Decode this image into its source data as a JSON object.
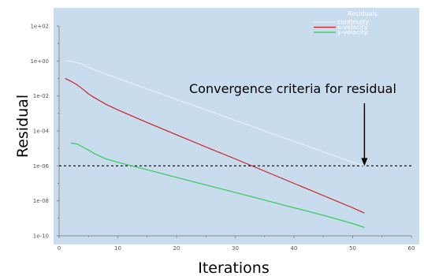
{
  "colors": {
    "plot_background": "#c8dcee",
    "frame_background": "#ffffff",
    "axis_color": "#8a8a8a",
    "threshold_line": "#000000"
  },
  "chart_data": {
    "type": "line",
    "xlabel": "Iterations",
    "ylabel": "Residual",
    "xlim": [
      0,
      60
    ],
    "ylim": [
      1e-10,
      100
    ],
    "y_scale": "log",
    "grid": false,
    "legend_title": "Residuals",
    "legend_position": "top-right",
    "x_ticks": [
      0,
      10,
      20,
      30,
      40,
      50,
      60
    ],
    "x_tick_labels": [
      "0",
      "10",
      "20",
      "30",
      "40",
      "50",
      "60"
    ],
    "y_ticks": [
      1e-10,
      1e-08,
      1e-06,
      0.0001,
      0.01,
      1,
      100
    ],
    "y_tick_labels": [
      "1e-10",
      "1e-08",
      "1e-06",
      "1e-04",
      "1e-02",
      "1e+00",
      "1e+02"
    ],
    "series": [
      {
        "name": "continuity",
        "color": "#e8eef8",
        "x": [
          1,
          2,
          3,
          4,
          5,
          10,
          15,
          20,
          25,
          30,
          35,
          40,
          45,
          50,
          52
        ],
        "y": [
          1.0,
          1.0,
          0.8,
          0.65,
          0.42,
          0.1,
          0.025,
          0.0063,
          0.0016,
          0.0004,
          0.0001,
          2.5e-05,
          6.3e-06,
          1.6e-06,
          1e-06
        ]
      },
      {
        "name": "x-velocity",
        "color": "#cc2222",
        "x": [
          1,
          2,
          3,
          4,
          5,
          6,
          8,
          10,
          15,
          20,
          25,
          30,
          35,
          40,
          45,
          50,
          52
        ],
        "y": [
          0.1,
          0.07,
          0.045,
          0.025,
          0.013,
          0.008,
          0.0033,
          0.0016,
          0.0003,
          6e-05,
          1.2e-05,
          2.5e-06,
          5e-07,
          1e-07,
          2e-08,
          4e-09,
          2e-09
        ]
      },
      {
        "name": "y-velocity",
        "color": "#33cc55",
        "x": [
          2,
          3,
          4,
          5,
          6,
          8,
          10,
          15,
          20,
          25,
          30,
          35,
          40,
          45,
          50,
          52
        ],
        "y": [
          2e-05,
          1.8e-05,
          1.2e-05,
          8e-06,
          5e-06,
          2.5e-06,
          1.6e-06,
          6e-07,
          2.2e-07,
          8e-08,
          3e-08,
          1.1e-08,
          4e-09,
          1.5e-09,
          5e-10,
          3e-10
        ]
      }
    ],
    "threshold": {
      "y": 1e-06
    },
    "annotation": {
      "text": "Convergence criteria  for residual",
      "arrow_x": 52,
      "arrow_to_y": 1e-06
    }
  }
}
